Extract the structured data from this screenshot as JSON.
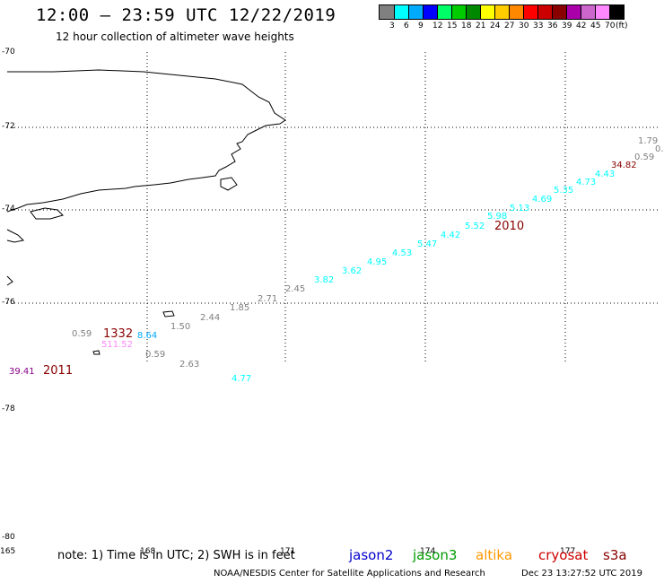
{
  "header": {
    "title": "12:00 – 23:59 UTC 12/22/2019",
    "subtitle": "12 hour collection of altimeter wave heights"
  },
  "legend": {
    "colors": [
      "#808080",
      "#00ffff",
      "#00aaff",
      "#0000ff",
      "#00ff66",
      "#00cc00",
      "#008800",
      "#ffff00",
      "#ffcc00",
      "#ff8800",
      "#ff0000",
      "#cc0000",
      "#880000",
      "#aa00aa",
      "#cc66cc",
      "#ff88ff",
      "#000000"
    ],
    "ticks": [
      "3",
      "6",
      "9",
      "12",
      "15",
      "18",
      "21",
      "24",
      "27",
      "30",
      "33",
      "36",
      "39",
      "42",
      "45",
      "70",
      "(ft)"
    ]
  },
  "axes": {
    "lat_labels": [
      "-70",
      "-72",
      "-74",
      "-76",
      "-78",
      "-80"
    ],
    "lon_labels": [
      "165",
      "168",
      "171",
      "174",
      "177"
    ]
  },
  "observations": [
    {
      "value": "1.79",
      "color": "#808080"
    },
    {
      "value": "0.",
      "color": "#808080"
    },
    {
      "value": "0.59",
      "color": "#808080"
    },
    {
      "value": "34.82",
      "color": "#880000"
    },
    {
      "value": "4.43",
      "color": "#00ffff"
    },
    {
      "value": "4.73",
      "color": "#00ffff"
    },
    {
      "value": "5.35",
      "color": "#00ffff"
    },
    {
      "value": "4.69",
      "color": "#00ffff"
    },
    {
      "value": "5.13",
      "color": "#00ffff"
    },
    {
      "value": "5.98",
      "color": "#00ffff"
    },
    {
      "value": "5.52",
      "color": "#00ffff"
    },
    {
      "value": "4.42",
      "color": "#00ffff"
    },
    {
      "value": "5.47",
      "color": "#00ffff"
    },
    {
      "value": "4.53",
      "color": "#00ffff"
    },
    {
      "value": "4.95",
      "color": "#00ffff"
    },
    {
      "value": "3.62",
      "color": "#00ffff"
    },
    {
      "value": "3.82",
      "color": "#00ffff"
    },
    {
      "value": "2.45",
      "color": "#808080"
    },
    {
      "value": "2.71",
      "color": "#808080"
    },
    {
      "value": "1.85",
      "color": "#808080"
    },
    {
      "value": "2.44",
      "color": "#808080"
    },
    {
      "value": "1.50",
      "color": "#808080"
    },
    {
      "value": "8.64",
      "color": "#00aaff"
    },
    {
      "value": "0.59",
      "color": "#808080"
    },
    {
      "value": "511.52",
      "color": "#ff88ff"
    },
    {
      "value": "0.59",
      "color": "#808080"
    },
    {
      "value": "2.63",
      "color": "#808080"
    },
    {
      "value": "4.77",
      "color": "#00ffff"
    },
    {
      "value": "39.41",
      "color": "#880088"
    }
  ],
  "time_labels": [
    {
      "text": "2010",
      "color": "#880000"
    },
    {
      "text": "1332",
      "color": "#880000"
    },
    {
      "text": "2011",
      "color": "#880000"
    }
  ],
  "footer": {
    "note": "note: 1) Time is in UTC; 2) SWH is in feet",
    "missions": [
      {
        "name": "jason2",
        "color": "#0000cc"
      },
      {
        "name": "jason3",
        "color": "#009900"
      },
      {
        "name": "altika",
        "color": "#ff9900"
      },
      {
        "name": "cryosat",
        "color": "#cc0000"
      },
      {
        "name": "s3a",
        "color": "#880000"
      }
    ],
    "credit": "NOAA/NESDIS Center for Satellite Applications and Research",
    "timestamp": "Dec 23 13:27:52 UTC 2019"
  }
}
